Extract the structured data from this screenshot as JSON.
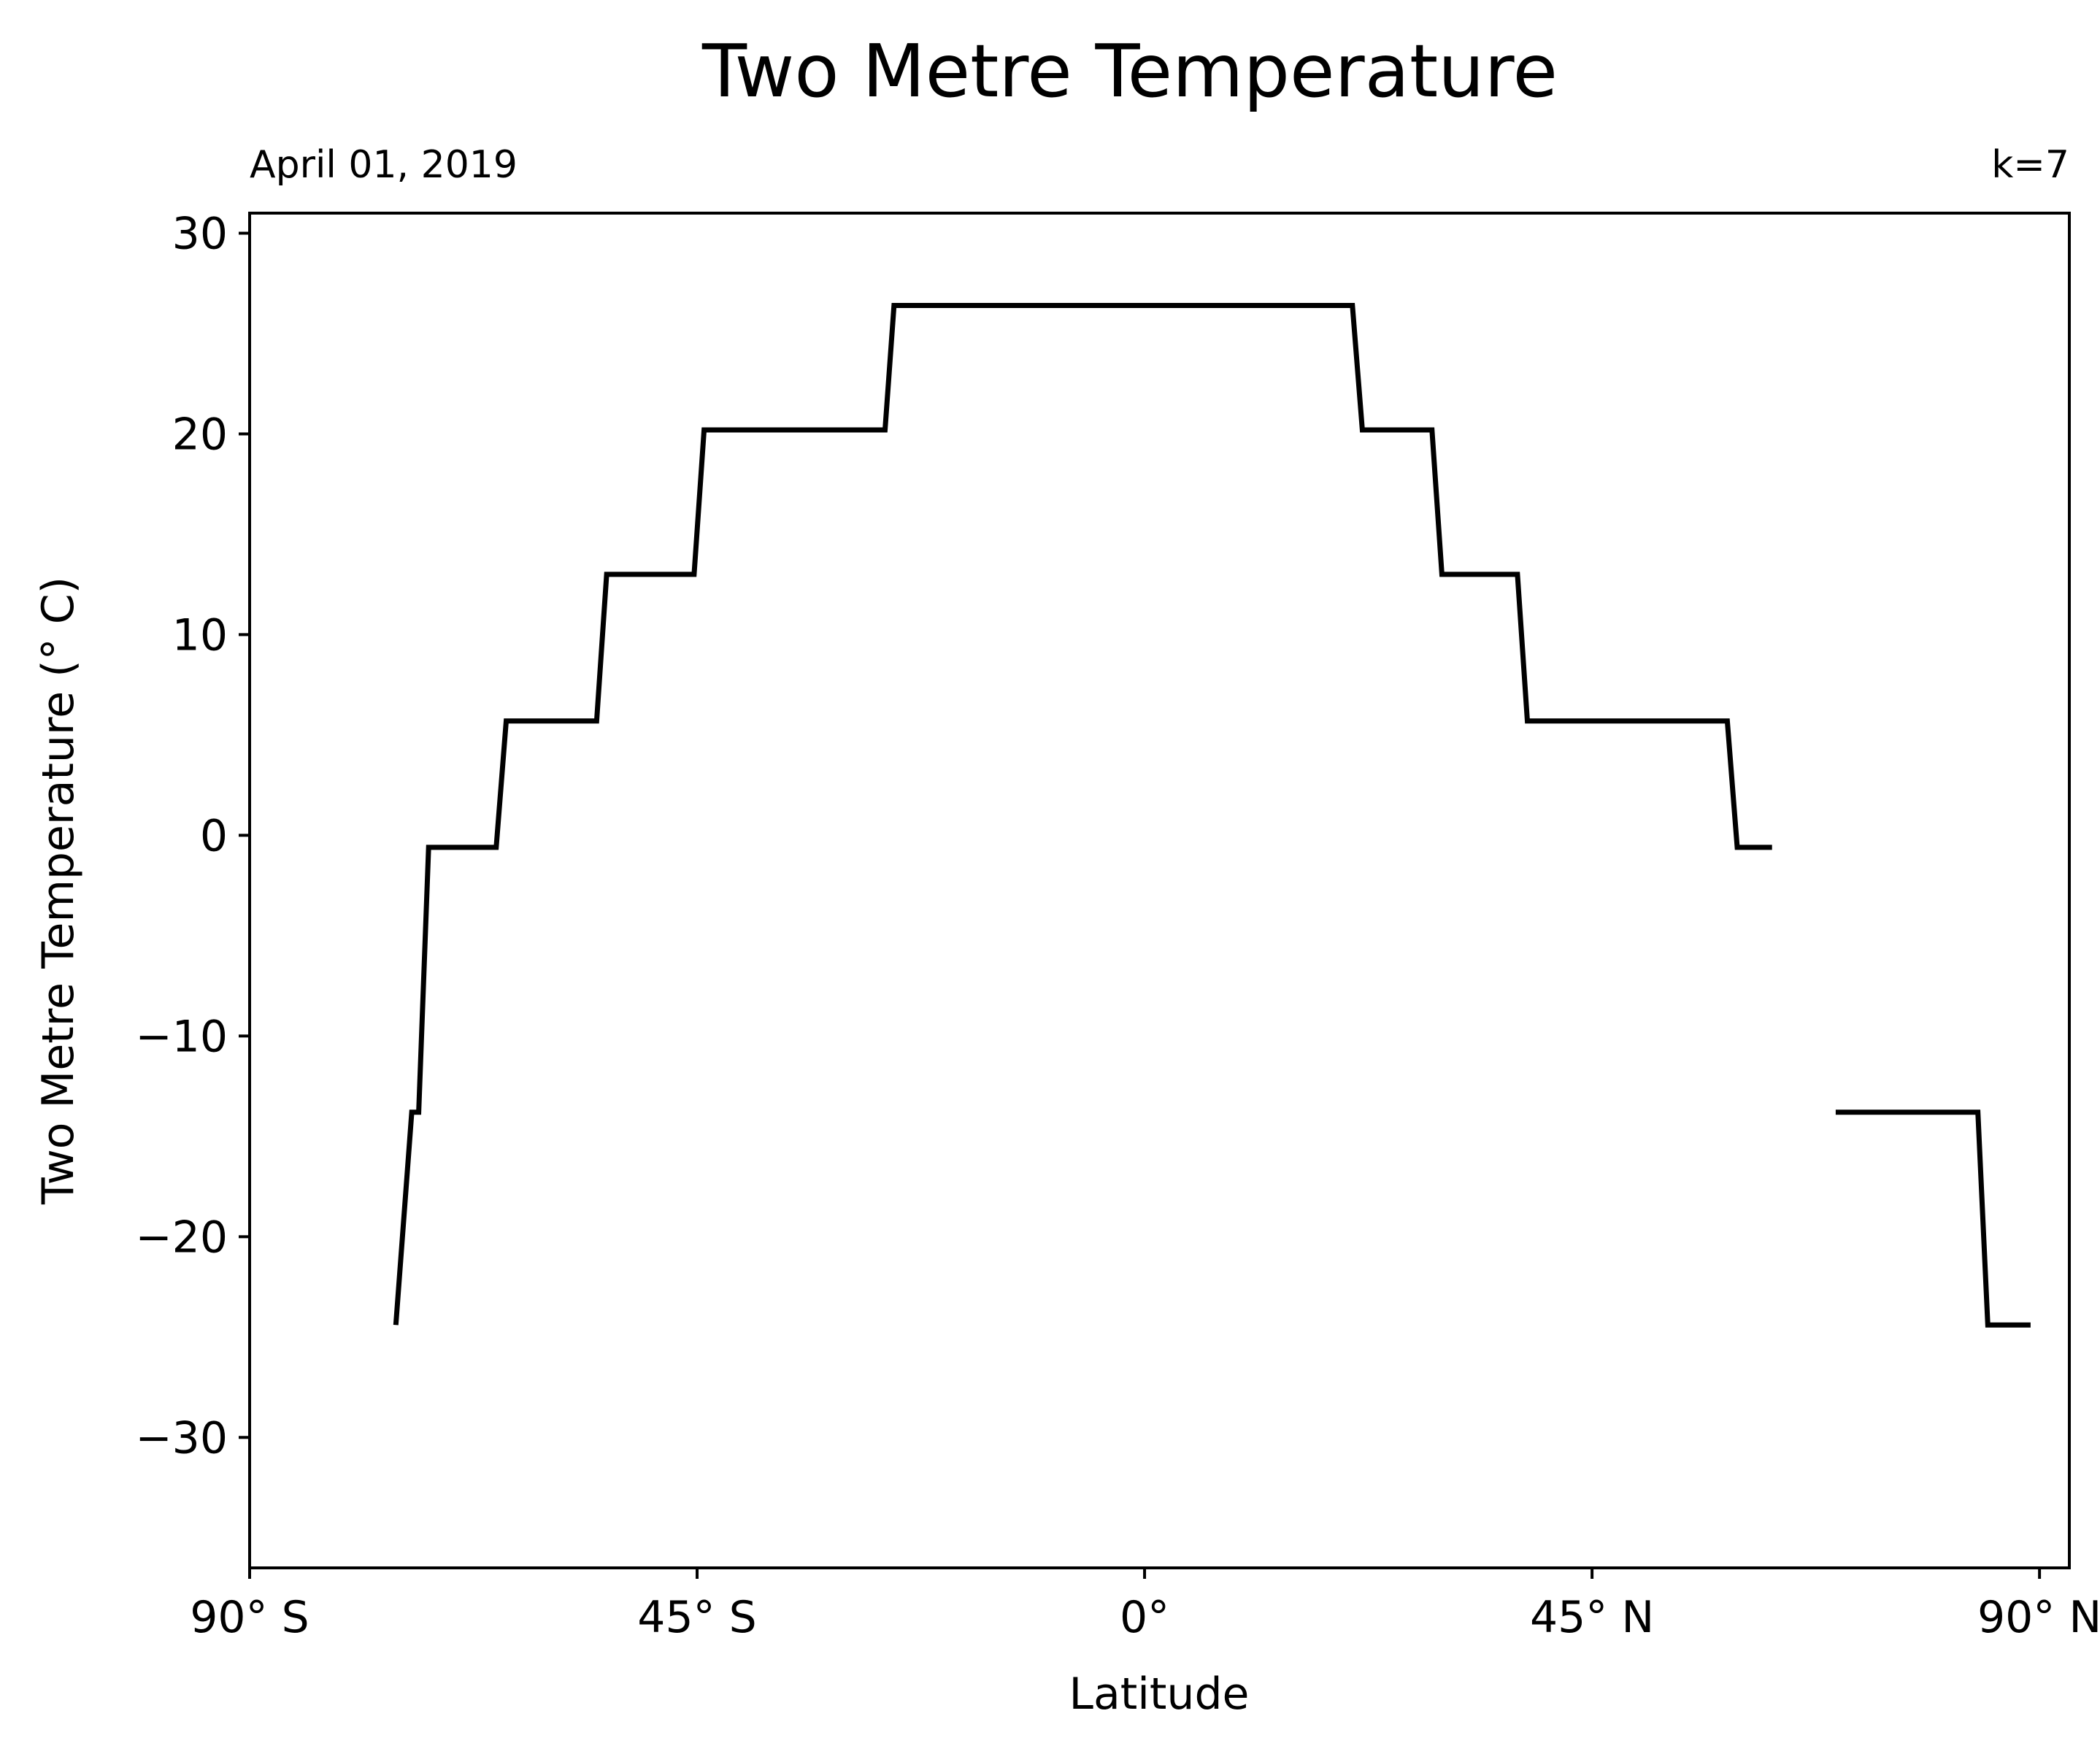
{
  "chart_data": {
    "type": "line",
    "title": "Two Metre Temperature",
    "subtitle_left": "April 01, 2019",
    "subtitle_right": "k=7",
    "xlabel": "Latitude",
    "ylabel": "Two Metre Temperature (° C)",
    "xlim": [
      -90,
      93
    ],
    "ylim": [
      -36.5,
      31
    ],
    "grid": false,
    "legend": "none",
    "line_color": "#000000",
    "x_ticks": [
      {
        "value": -90,
        "label": "90° S"
      },
      {
        "value": -45,
        "label": "45° S"
      },
      {
        "value": 0,
        "label": "0°"
      },
      {
        "value": 45,
        "label": "45° N"
      },
      {
        "value": 90,
        "label": "90° N"
      }
    ],
    "y_ticks": [
      {
        "value": 30,
        "label": "30"
      },
      {
        "value": 20,
        "label": "20"
      },
      {
        "value": 10,
        "label": "10"
      },
      {
        "value": 0,
        "label": "0"
      },
      {
        "value": -10,
        "label": "−10"
      },
      {
        "value": -20,
        "label": "−20"
      },
      {
        "value": -30,
        "label": "−30"
      }
    ],
    "series": [
      {
        "segments": [
          [
            [
              -75.3,
              -24.4
            ],
            [
              -73.7,
              -13.8
            ],
            [
              -73.0,
              -13.8
            ],
            [
              -72.0,
              -0.6
            ],
            [
              -65.2,
              -0.6
            ],
            [
              -64.2,
              5.7
            ],
            [
              -55.1,
              5.7
            ],
            [
              -54.1,
              13.0
            ],
            [
              -45.3,
              13.0
            ],
            [
              -44.3,
              20.2
            ],
            [
              -26.1,
              20.2
            ],
            [
              -25.2,
              26.4
            ],
            [
              20.9,
              26.4
            ],
            [
              21.9,
              20.2
            ],
            [
              28.9,
              20.2
            ],
            [
              29.9,
              13.0
            ],
            [
              37.5,
              13.0
            ],
            [
              38.5,
              5.7
            ],
            [
              58.6,
              5.7
            ],
            [
              59.6,
              -0.6
            ],
            [
              63.1,
              -0.6
            ]
          ],
          [
            [
              69.5,
              -13.8
            ],
            [
              83.8,
              -13.8
            ],
            [
              84.8,
              -24.4
            ],
            [
              89.1,
              -24.4
            ]
          ]
        ]
      }
    ]
  }
}
